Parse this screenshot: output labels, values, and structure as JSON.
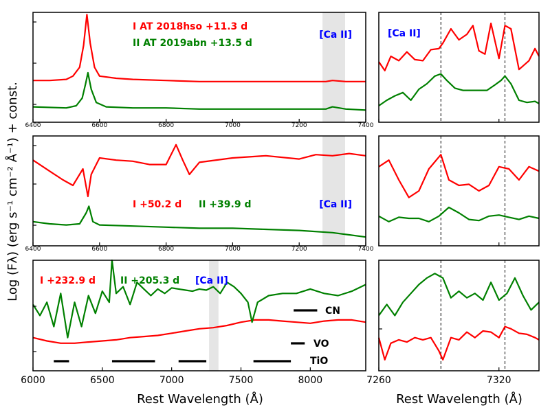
{
  "figure": {
    "ylabel": "Log (Fλ) (erg s⁻¹ cm⁻² Å⁻¹) + const.",
    "xlabel_left": "Rest Wavelength (Å)",
    "xlabel_right": "Rest Wavelength (Å)"
  },
  "colors": {
    "series1": "#ff0000",
    "series2": "#008000",
    "ca_label": "#0000ff",
    "band": "#e5e5e5"
  },
  "chart_data": [
    {
      "id": "top-left",
      "type": "line",
      "xlim": [
        6400,
        7400
      ],
      "xticks": [
        6400,
        6600,
        6800,
        7000,
        7200,
        7400
      ],
      "xtick_labels": [
        "6400",
        "6600",
        "6800",
        "7000",
        "7200",
        "7400"
      ],
      "ylim": [
        0,
        1
      ],
      "shaded_band": [
        7270,
        7338
      ],
      "annotations": [
        "I AT 2018hso +11.3 d",
        "II AT 2019abn +13.5 d",
        "[Ca II]"
      ],
      "series": [
        {
          "name": "I AT 2018hso +11.3 d",
          "color": "#ff0000",
          "x": [
            6400,
            6450,
            6500,
            6520,
            6540,
            6552,
            6562,
            6572,
            6585,
            6600,
            6650,
            6700,
            6800,
            6900,
            7000,
            7100,
            7200,
            7280,
            7300,
            7340,
            7400
          ],
          "y": [
            0.38,
            0.38,
            0.39,
            0.42,
            0.5,
            0.7,
            0.98,
            0.72,
            0.5,
            0.42,
            0.4,
            0.39,
            0.38,
            0.37,
            0.37,
            0.37,
            0.37,
            0.37,
            0.38,
            0.37,
            0.37
          ]
        },
        {
          "name": "II AT 2019abn +13.5 d",
          "color": "#008000",
          "x": [
            6400,
            6500,
            6530,
            6548,
            6558,
            6565,
            6575,
            6590,
            6620,
            6700,
            6800,
            6900,
            7000,
            7100,
            7200,
            7280,
            7300,
            7340,
            7400
          ],
          "y": [
            0.14,
            0.13,
            0.15,
            0.22,
            0.35,
            0.45,
            0.3,
            0.18,
            0.14,
            0.13,
            0.13,
            0.12,
            0.12,
            0.12,
            0.12,
            0.12,
            0.14,
            0.12,
            0.11
          ]
        }
      ]
    },
    {
      "id": "top-right",
      "type": "line",
      "xlim": [
        7260,
        7340
      ],
      "xticks": [
        7260,
        7320
      ],
      "xtick_labels": [],
      "vlines": [
        7291,
        7323
      ],
      "ylim": [
        0,
        1
      ],
      "annotations": [
        "[Ca II]"
      ],
      "series": [
        {
          "name": "I AT 2018hso +11.3 d",
          "color": "#ff0000",
          "x": [
            7260,
            7263,
            7266,
            7270,
            7274,
            7278,
            7282,
            7286,
            7290,
            7292,
            7296,
            7300,
            7304,
            7307,
            7310,
            7313,
            7316,
            7320,
            7323,
            7326,
            7330,
            7335,
            7338,
            7340
          ],
          "y": [
            0.55,
            0.47,
            0.6,
            0.56,
            0.64,
            0.57,
            0.56,
            0.66,
            0.67,
            0.72,
            0.85,
            0.75,
            0.8,
            0.88,
            0.65,
            0.62,
            0.9,
            0.58,
            0.88,
            0.85,
            0.48,
            0.56,
            0.67,
            0.6
          ]
        },
        {
          "name": "II AT 2019abn +13.5 d",
          "color": "#008000",
          "x": [
            7260,
            7264,
            7268,
            7272,
            7276,
            7280,
            7284,
            7288,
            7291,
            7294,
            7298,
            7302,
            7306,
            7310,
            7314,
            7318,
            7321,
            7323,
            7326,
            7330,
            7334,
            7338,
            7340
          ],
          "y": [
            0.15,
            0.2,
            0.24,
            0.27,
            0.2,
            0.3,
            0.35,
            0.42,
            0.44,
            0.38,
            0.31,
            0.29,
            0.29,
            0.29,
            0.29,
            0.34,
            0.38,
            0.42,
            0.35,
            0.2,
            0.18,
            0.19,
            0.17
          ]
        }
      ]
    },
    {
      "id": "middle-left",
      "type": "line",
      "xlim": [
        6400,
        7400
      ],
      "xticks": [
        6400,
        6600,
        6800,
        7000,
        7200,
        7400
      ],
      "xtick_labels": [
        "6400",
        "6600",
        "6800",
        "7000",
        "7200",
        "7400"
      ],
      "ylim": [
        0,
        1
      ],
      "shaded_band": [
        7270,
        7338
      ],
      "annotations": [
        "I +50.2 d",
        "II +39.9 d",
        "[Ca II]"
      ],
      "series": [
        {
          "name": "I +50.2 d",
          "color": "#ff0000",
          "x": [
            6400,
            6430,
            6460,
            6490,
            6520,
            6550,
            6565,
            6575,
            6600,
            6650,
            6700,
            6750,
            6800,
            6830,
            6850,
            6870,
            6900,
            7000,
            7100,
            7200,
            7250,
            7300,
            7350,
            7400
          ],
          "y": [
            0.78,
            0.72,
            0.66,
            0.6,
            0.55,
            0.7,
            0.45,
            0.65,
            0.8,
            0.78,
            0.77,
            0.74,
            0.74,
            0.92,
            0.78,
            0.65,
            0.76,
            0.8,
            0.82,
            0.79,
            0.83,
            0.82,
            0.84,
            0.82
          ]
        },
        {
          "name": "II +39.9 d",
          "color": "#008000",
          "x": [
            6400,
            6450,
            6500,
            6540,
            6560,
            6568,
            6580,
            6600,
            6700,
            6800,
            6900,
            7000,
            7100,
            7200,
            7300,
            7350,
            7400
          ],
          "y": [
            0.22,
            0.2,
            0.19,
            0.2,
            0.3,
            0.36,
            0.22,
            0.19,
            0.18,
            0.17,
            0.16,
            0.16,
            0.15,
            0.14,
            0.12,
            0.1,
            0.08
          ]
        }
      ]
    },
    {
      "id": "middle-right",
      "type": "line",
      "xlim": [
        7260,
        7340
      ],
      "xticks": [
        7260,
        7320
      ],
      "xtick_labels": [],
      "vlines": [
        7291,
        7323
      ],
      "ylim": [
        0,
        1
      ],
      "series": [
        {
          "name": "I +50.2 d",
          "color": "#ff0000",
          "x": [
            7260,
            7265,
            7270,
            7275,
            7280,
            7285,
            7291,
            7295,
            7300,
            7305,
            7310,
            7315,
            7320,
            7325,
            7330,
            7335,
            7340
          ],
          "y": [
            0.72,
            0.78,
            0.6,
            0.44,
            0.5,
            0.7,
            0.83,
            0.6,
            0.55,
            0.56,
            0.5,
            0.55,
            0.72,
            0.7,
            0.6,
            0.72,
            0.68
          ]
        },
        {
          "name": "II +39.9 d",
          "color": "#008000",
          "x": [
            7260,
            7265,
            7270,
            7275,
            7280,
            7285,
            7290,
            7295,
            7300,
            7305,
            7310,
            7315,
            7320,
            7325,
            7330,
            7335,
            7340
          ],
          "y": [
            0.27,
            0.22,
            0.26,
            0.25,
            0.25,
            0.22,
            0.27,
            0.35,
            0.3,
            0.24,
            0.23,
            0.27,
            0.28,
            0.26,
            0.24,
            0.27,
            0.25
          ]
        }
      ]
    },
    {
      "id": "bottom-left",
      "type": "line",
      "xlim": [
        6000,
        8400
      ],
      "xticks": [
        6000,
        6500,
        7000,
        7500,
        8000
      ],
      "xtick_labels": [
        "6000",
        "6500",
        "7000",
        "7500",
        "8000"
      ],
      "ylim": [
        0,
        1
      ],
      "shaded_band": [
        7270,
        7338
      ],
      "annotations": [
        "I +232.9 d",
        "II +205.3 d",
        "[Ca II]",
        "CN",
        "VO",
        "TiO"
      ],
      "series": [
        {
          "name": "I +232.9 d",
          "color": "#ff0000",
          "x": [
            6000,
            6100,
            6200,
            6300,
            6400,
            6500,
            6600,
            6700,
            6800,
            6900,
            7000,
            7100,
            7200,
            7300,
            7400,
            7500,
            7600,
            7700,
            7800,
            7900,
            8000,
            8100,
            8200,
            8300,
            8400
          ],
          "y": [
            0.3,
            0.27,
            0.25,
            0.25,
            0.26,
            0.27,
            0.28,
            0.3,
            0.31,
            0.32,
            0.34,
            0.36,
            0.38,
            0.39,
            0.41,
            0.44,
            0.46,
            0.46,
            0.45,
            0.44,
            0.43,
            0.45,
            0.46,
            0.46,
            0.44
          ]
        },
        {
          "name": "II +205.3 d",
          "color": "#008000",
          "x": [
            6000,
            6050,
            6100,
            6150,
            6200,
            6250,
            6300,
            6350,
            6400,
            6450,
            6500,
            6550,
            6570,
            6600,
            6650,
            6700,
            6750,
            6800,
            6850,
            6900,
            6950,
            7000,
            7050,
            7100,
            7150,
            7200,
            7250,
            7300,
            7350,
            7400,
            7450,
            7500,
            7550,
            7580,
            7620,
            7700,
            7800,
            7900,
            8000,
            8100,
            8200,
            8300,
            8400
          ],
          "y": [
            0.6,
            0.5,
            0.62,
            0.4,
            0.7,
            0.3,
            0.62,
            0.4,
            0.68,
            0.52,
            0.72,
            0.62,
            1.0,
            0.7,
            0.76,
            0.6,
            0.8,
            0.74,
            0.68,
            0.74,
            0.7,
            0.75,
            0.74,
            0.73,
            0.72,
            0.74,
            0.73,
            0.76,
            0.7,
            0.8,
            0.76,
            0.7,
            0.62,
            0.44,
            0.62,
            0.68,
            0.7,
            0.7,
            0.74,
            0.7,
            0.68,
            0.72,
            0.78
          ]
        }
      ],
      "bands": [
        {
          "label": "CN",
          "ranges": [
            [
              7880,
              8050
            ]
          ]
        },
        {
          "label": "VO",
          "ranges": [
            [
              7860,
              7960
            ]
          ]
        },
        {
          "label": "TiO",
          "ranges": [
            [
              6150,
              6260
            ],
            [
              6570,
              6880
            ],
            [
              7050,
              7250
            ],
            [
              7590,
              7860
            ]
          ]
        }
      ]
    },
    {
      "id": "bottom-right",
      "type": "line",
      "xlim": [
        7260,
        7340
      ],
      "xticks": [
        7260,
        7320
      ],
      "xtick_labels": [
        "7260",
        "7320"
      ],
      "vlines": [
        7291,
        7323
      ],
      "ylim": [
        0,
        1
      ],
      "series": [
        {
          "name": "I +232.9 d",
          "color": "#ff0000",
          "x": [
            7260,
            7263,
            7266,
            7270,
            7274,
            7278,
            7282,
            7286,
            7290,
            7292,
            7296,
            7300,
            7304,
            7308,
            7312,
            7316,
            7320,
            7323,
            7326,
            7330,
            7334,
            7338,
            7340
          ],
          "y": [
            0.3,
            0.1,
            0.25,
            0.28,
            0.26,
            0.3,
            0.28,
            0.3,
            0.18,
            0.1,
            0.3,
            0.28,
            0.35,
            0.3,
            0.36,
            0.35,
            0.3,
            0.4,
            0.38,
            0.34,
            0.33,
            0.3,
            0.28
          ]
        },
        {
          "name": "II +205.3 d",
          "color": "#008000",
          "x": [
            7260,
            7264,
            7268,
            7272,
            7276,
            7280,
            7284,
            7288,
            7292,
            7296,
            7300,
            7304,
            7308,
            7312,
            7316,
            7320,
            7324,
            7328,
            7332,
            7336,
            7340
          ],
          "y": [
            0.5,
            0.6,
            0.5,
            0.62,
            0.7,
            0.78,
            0.84,
            0.88,
            0.84,
            0.66,
            0.72,
            0.66,
            0.7,
            0.64,
            0.8,
            0.64,
            0.7,
            0.84,
            0.68,
            0.55,
            0.62
          ]
        }
      ]
    }
  ]
}
